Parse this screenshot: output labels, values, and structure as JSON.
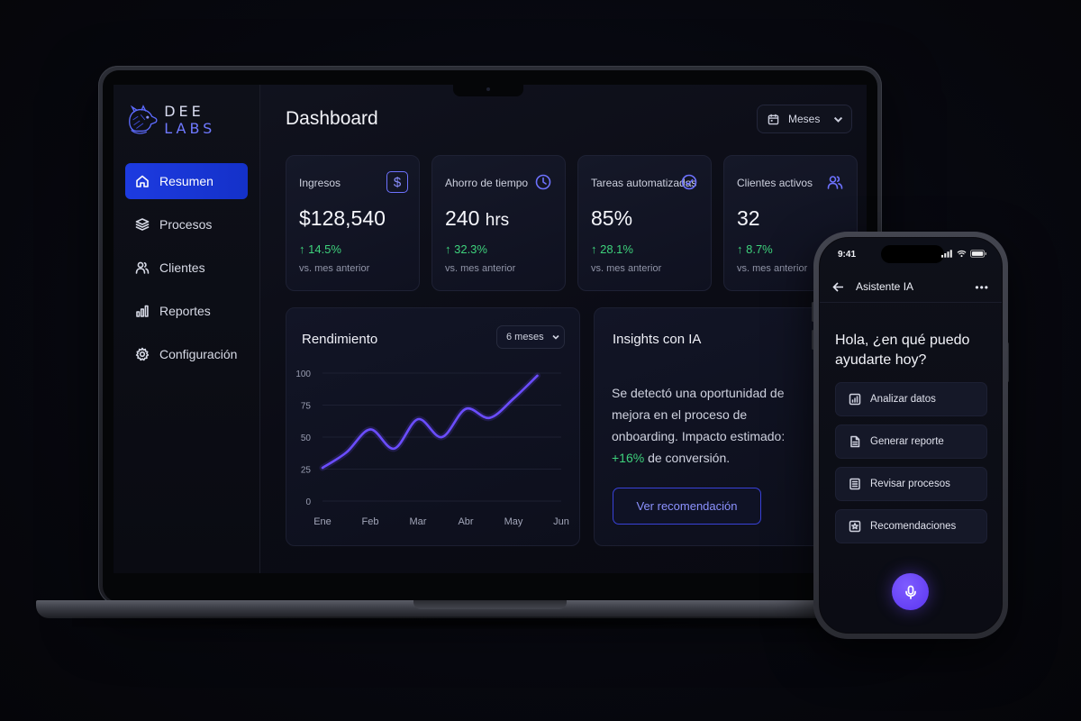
{
  "brand": {
    "logo_dee": "DEE",
    "logo_labs": "LABS"
  },
  "sidebar": {
    "items": [
      {
        "label": "Resumen",
        "icon": "home-icon",
        "active": true
      },
      {
        "label": "Procesos",
        "icon": "layers-icon"
      },
      {
        "label": "Clientes",
        "icon": "users-icon"
      },
      {
        "label": "Reportes",
        "icon": "bar-chart-icon"
      },
      {
        "label": "Configuración",
        "icon": "gear-icon"
      }
    ]
  },
  "header": {
    "title": "Dashboard",
    "range_label": "Meses"
  },
  "kpis": [
    {
      "label": "Ingresos",
      "value": "$128,540",
      "change": "↑ 14.5%",
      "sub": "vs. mes anterior",
      "icon": "dollar-icon"
    },
    {
      "label": "Ahorro de tiempo",
      "value": "240",
      "unit": "hrs",
      "change": "↑ 32.3%",
      "sub": "vs. mes anterior",
      "icon": "clock-icon"
    },
    {
      "label": "Tareas automatizadas",
      "value": "85%",
      "change": "↑ 28.1%",
      "sub": "vs. mes anterior",
      "icon": "check-circle-icon"
    },
    {
      "label": "Clientes activos",
      "value": "32",
      "change": "↑ 8.7%",
      "sub": "vs. mes anterior",
      "icon": "users-icon"
    }
  ],
  "performance": {
    "title": "Rendimiento",
    "period_label": "6 meses",
    "chart_data": {
      "type": "line",
      "x": [
        "Ene",
        "Feb",
        "Mar",
        "Abr",
        "May",
        "Jun"
      ],
      "y_ticks": [
        0,
        25,
        50,
        75,
        100
      ],
      "ylim": [
        0,
        100
      ],
      "series": [
        {
          "points": [
            [
              0.0,
              26
            ],
            [
              0.5,
              38
            ],
            [
              1.0,
              56
            ],
            [
              1.5,
              41
            ],
            [
              2.0,
              64
            ],
            [
              2.5,
              50
            ],
            [
              3.0,
              72
            ],
            [
              3.5,
              65
            ],
            [
              4.0,
              80
            ],
            [
              4.5,
              98
            ]
          ]
        }
      ],
      "grid": true,
      "line_color": "#6b4dff"
    }
  },
  "insights": {
    "title": "Insights con IA",
    "text_before": "Se detectó una oportunidad de mejora en el proceso de onboarding. Impacto estimado: ",
    "highlight": "+16%",
    "text_after": " de conversión.",
    "button_label": "Ver recomendación"
  },
  "phone": {
    "time": "9:41",
    "header_title": "Asistente IA",
    "greeting": "Hola, ¿en qué puedo ayudarte hoy?",
    "actions": [
      {
        "label": "Analizar datos",
        "icon": "chart-icon"
      },
      {
        "label": "Generar reporte",
        "icon": "document-icon"
      },
      {
        "label": "Revisar procesos",
        "icon": "list-icon"
      },
      {
        "label": "Recomendaciones",
        "icon": "star-icon"
      }
    ],
    "mic_icon": "microphone-icon"
  },
  "colors": {
    "accent": "#6d72ff",
    "active_nav": "#1d3be0",
    "positive": "#3ed27c",
    "mic": "#5b35f0"
  }
}
